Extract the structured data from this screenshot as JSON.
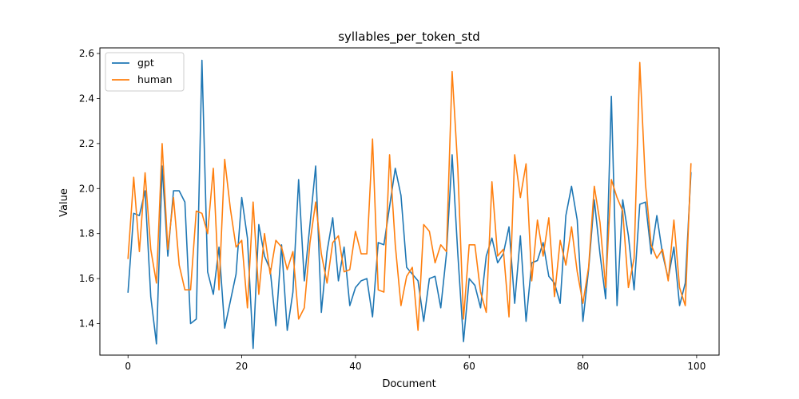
{
  "chart_data": {
    "type": "line",
    "title": "syllables_per_token_std",
    "xlabel": "Document",
    "ylabel": "Value",
    "xlim": [
      -4.95,
      103.95
    ],
    "ylim": [
      1.26,
      2.625
    ],
    "xticks": [
      0,
      20,
      40,
      60,
      80,
      100
    ],
    "yticks": [
      1.4,
      1.6,
      1.8,
      2.0,
      2.2,
      2.4,
      2.6
    ],
    "grid": false,
    "legend": "top-left",
    "series": [
      {
        "name": "gpt",
        "color": "#1f77b4",
        "x": [
          0,
          1,
          2,
          3,
          4,
          5,
          6,
          7,
          8,
          9,
          10,
          11,
          12,
          13,
          14,
          15,
          16,
          17,
          18,
          19,
          20,
          21,
          22,
          23,
          24,
          25,
          26,
          27,
          28,
          29,
          30,
          31,
          32,
          33,
          34,
          35,
          36,
          37,
          38,
          39,
          40,
          41,
          42,
          43,
          44,
          45,
          46,
          47,
          48,
          49,
          50,
          51,
          52,
          53,
          54,
          55,
          56,
          57,
          58,
          59,
          60,
          61,
          62,
          63,
          64,
          65,
          66,
          67,
          68,
          69,
          70,
          71,
          72,
          73,
          74,
          75,
          76,
          77,
          78,
          79,
          80,
          81,
          82,
          83,
          84,
          85,
          86,
          87,
          88,
          89,
          90,
          91,
          92,
          93,
          94,
          95,
          96,
          97,
          98,
          99
        ],
        "values": [
          1.54,
          1.89,
          1.88,
          1.99,
          1.52,
          1.31,
          2.1,
          1.7,
          1.99,
          1.99,
          1.94,
          1.4,
          1.42,
          2.57,
          1.63,
          1.53,
          1.74,
          1.38,
          1.5,
          1.62,
          1.96,
          1.78,
          1.29,
          1.84,
          1.7,
          1.64,
          1.39,
          1.75,
          1.37,
          1.54,
          2.04,
          1.59,
          1.84,
          2.1,
          1.45,
          1.72,
          1.87,
          1.59,
          1.74,
          1.48,
          1.56,
          1.59,
          1.6,
          1.43,
          1.76,
          1.75,
          1.92,
          2.09,
          1.97,
          1.65,
          1.62,
          1.59,
          1.41,
          1.6,
          1.61,
          1.47,
          1.71,
          2.15,
          1.71,
          1.32,
          1.6,
          1.57,
          1.47,
          1.7,
          1.78,
          1.67,
          1.71,
          1.83,
          1.49,
          1.79,
          1.41,
          1.67,
          1.68,
          1.76,
          1.61,
          1.58,
          1.49,
          1.88,
          2.01,
          1.86,
          1.41,
          1.64,
          1.95,
          1.71,
          1.51,
          2.41,
          1.48,
          1.95,
          1.79,
          1.55,
          1.93,
          1.94,
          1.71,
          1.88,
          1.71,
          1.6,
          1.74,
          1.48,
          1.58,
          2.07
        ]
      },
      {
        "name": "human",
        "color": "#ff7f0e",
        "x": [
          0,
          1,
          2,
          3,
          4,
          5,
          6,
          7,
          8,
          9,
          10,
          11,
          12,
          13,
          14,
          15,
          16,
          17,
          18,
          19,
          20,
          21,
          22,
          23,
          24,
          25,
          26,
          27,
          28,
          29,
          30,
          31,
          32,
          33,
          34,
          35,
          36,
          37,
          38,
          39,
          40,
          41,
          42,
          43,
          44,
          45,
          46,
          47,
          48,
          49,
          50,
          51,
          52,
          53,
          54,
          55,
          56,
          57,
          58,
          59,
          60,
          61,
          62,
          63,
          64,
          65,
          66,
          67,
          68,
          69,
          70,
          71,
          72,
          73,
          74,
          75,
          76,
          77,
          78,
          79,
          80,
          81,
          82,
          83,
          84,
          85,
          86,
          87,
          88,
          89,
          90,
          91,
          92,
          93,
          94,
          95,
          96,
          97,
          98,
          99
        ],
        "values": [
          1.69,
          2.05,
          1.72,
          2.07,
          1.73,
          1.58,
          2.2,
          1.73,
          1.96,
          1.66,
          1.55,
          1.55,
          1.9,
          1.89,
          1.8,
          2.09,
          1.55,
          2.13,
          1.91,
          1.74,
          1.77,
          1.47,
          1.94,
          1.53,
          1.8,
          1.62,
          1.77,
          1.74,
          1.64,
          1.72,
          1.42,
          1.47,
          1.76,
          1.94,
          1.71,
          1.58,
          1.76,
          1.79,
          1.63,
          1.64,
          1.81,
          1.71,
          1.71,
          2.22,
          1.55,
          1.54,
          2.15,
          1.75,
          1.48,
          1.61,
          1.65,
          1.37,
          1.84,
          1.81,
          1.67,
          1.75,
          1.72,
          2.52,
          2.09,
          1.42,
          1.75,
          1.75,
          1.54,
          1.45,
          2.03,
          1.7,
          1.73,
          1.43,
          2.15,
          1.96,
          2.11,
          1.59,
          1.86,
          1.7,
          1.87,
          1.52,
          1.77,
          1.66,
          1.83,
          1.63,
          1.49,
          1.65,
          2.01,
          1.85,
          1.56,
          2.04,
          1.96,
          1.9,
          1.56,
          1.69,
          2.56,
          2.02,
          1.75,
          1.69,
          1.73,
          1.59,
          1.86,
          1.56,
          1.48,
          2.11
        ]
      }
    ]
  }
}
